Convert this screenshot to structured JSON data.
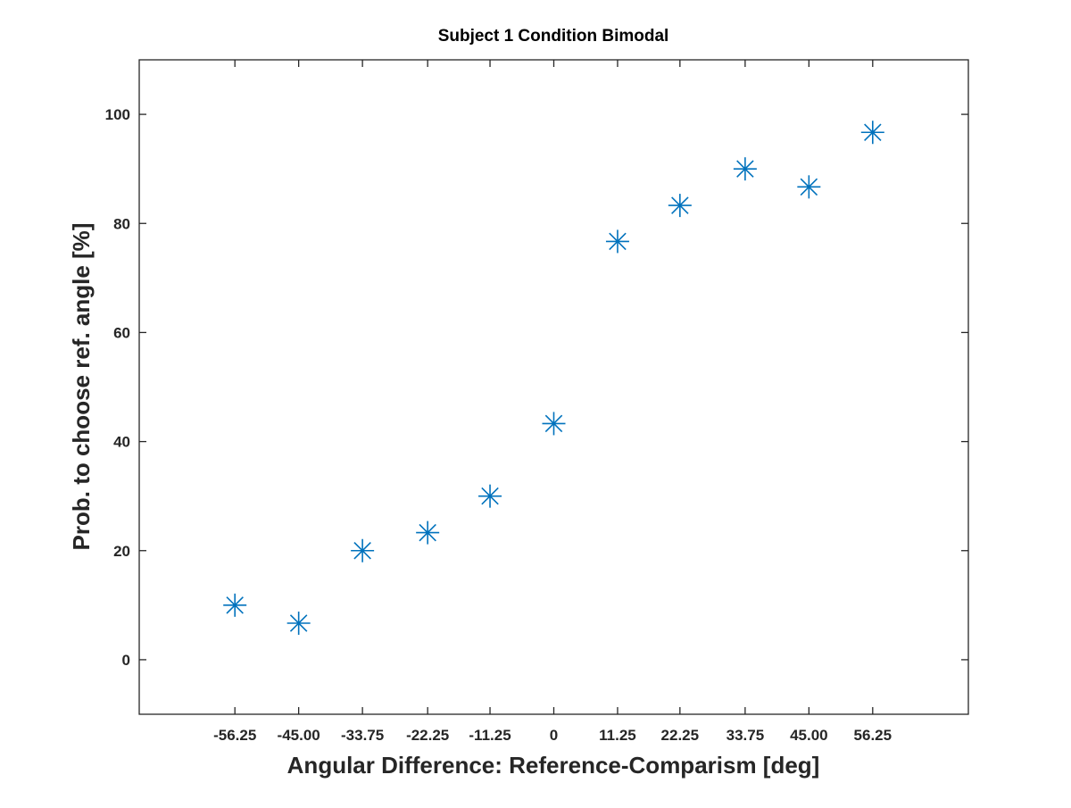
{
  "chart_data": {
    "type": "scatter",
    "title": "Subject 1 Condition Bimodal",
    "xlabel": "Angular Difference: Reference-Comparism [deg]",
    "ylabel": "Prob. to choose ref. angle [%]",
    "x_tick_labels": [
      "-56.25",
      "-45.00",
      "-33.75",
      "-22.25",
      "-11.25",
      "0",
      "11.25",
      "22.25",
      "33.75",
      "45.00",
      "56.25"
    ],
    "x": [
      -56.25,
      -45.0,
      -33.75,
      -22.25,
      -11.25,
      0,
      11.25,
      22.25,
      33.75,
      45.0,
      56.25
    ],
    "y": [
      10,
      6.7,
      20,
      23.3,
      30,
      43.3,
      76.7,
      83.3,
      90,
      86.7,
      96.7
    ],
    "xlim": [
      -73.125,
      73.125
    ],
    "ylim": [
      -10,
      110
    ],
    "y_ticks": [
      0,
      20,
      40,
      60,
      80,
      100
    ],
    "marker": "asterisk",
    "marker_color": "#0072BD",
    "grid": false,
    "legend": "none"
  }
}
